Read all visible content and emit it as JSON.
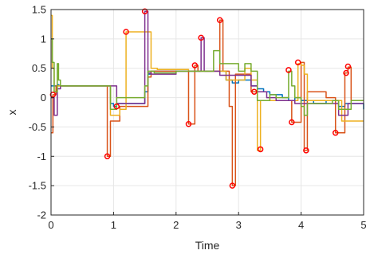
{
  "chart_data": {
    "type": "line",
    "title": "",
    "xlabel": "Time",
    "ylabel": "x",
    "xlim": [
      0,
      5
    ],
    "ylim": [
      -2,
      1.5
    ],
    "xticks": [
      "0",
      "1",
      "2",
      "3",
      "4",
      "5"
    ],
    "yticks": [
      "-2",
      "-1.5",
      "-1",
      "-0.5",
      "0",
      "0.5",
      "1",
      "1.5"
    ],
    "grid": true,
    "step_lines": true,
    "series": [
      {
        "color": "#0072bd",
        "x": [
          0,
          0.05,
          0.1,
          0.12,
          0.15,
          0.2,
          0.25,
          0.3,
          0.5,
          0.7,
          0.9,
          0.95,
          1.0,
          1.05,
          1.2,
          1.25,
          1.4,
          1.5,
          1.55,
          1.6,
          1.7,
          1.8,
          2.0,
          2.2,
          2.3,
          2.35,
          2.4,
          2.5,
          2.6,
          2.7,
          2.8,
          2.9,
          3.0,
          3.1,
          3.2,
          3.25,
          3.3,
          3.4,
          3.5,
          3.6,
          3.7,
          3.8,
          3.9,
          4.0,
          4.1,
          4.2,
          4.3,
          4.4,
          4.5,
          4.6,
          4.7,
          4.8,
          4.9,
          5.0
        ],
        "y": [
          0.2,
          0.2,
          0.22,
          0.21,
          0.2,
          0.2,
          0.2,
          0.2,
          0.2,
          0.2,
          0.2,
          -0.1,
          -0.15,
          -0.1,
          -0.1,
          -0.1,
          -0.1,
          0.1,
          0.4,
          0.45,
          0.45,
          0.45,
          0.45,
          0.45,
          0.45,
          0.45,
          0.45,
          0.45,
          0.45,
          0.45,
          0.3,
          0.25,
          0.3,
          0.3,
          0.2,
          0.2,
          0.15,
          0.1,
          0.05,
          0.05,
          0.0,
          -0.05,
          0.0,
          -0.05,
          -0.05,
          -0.1,
          -0.1,
          -0.05,
          -0.05,
          -0.15,
          -0.1,
          -0.1,
          -0.1,
          -0.2
        ]
      },
      {
        "color": "#d95319",
        "x": [
          0,
          0.03,
          0.05,
          0.08,
          0.1,
          0.3,
          0.85,
          0.9,
          0.95,
          1.1,
          1.2,
          1.3,
          1.4,
          1.5,
          1.55,
          1.6,
          2.1,
          2.2,
          2.25,
          2.3,
          2.35,
          2.5,
          2.6,
          2.7,
          2.75,
          2.85,
          2.9,
          2.95,
          3.1,
          3.2,
          3.3,
          3.5,
          3.75,
          3.8,
          3.85,
          3.9,
          4.0,
          4.05,
          4.1,
          4.4,
          4.55,
          4.65,
          4.7,
          4.75,
          4.8,
          5.0
        ],
        "y": [
          -0.6,
          0.05,
          0.05,
          0.2,
          0.2,
          0.2,
          0.2,
          -1.0,
          -0.4,
          -0.15,
          -0.15,
          -0.15,
          -0.15,
          -0.15,
          0.35,
          0.45,
          0.45,
          -0.45,
          -0.45,
          0.55,
          0.45,
          0.45,
          0.45,
          1.32,
          0.45,
          -0.15,
          -1.5,
          0.4,
          0.4,
          0.1,
          -0.05,
          -0.05,
          -0.05,
          -0.05,
          -0.42,
          -0.42,
          0.6,
          -0.9,
          0.1,
          0.0,
          -0.6,
          -0.6,
          0.42,
          0.52,
          -0.05,
          -0.05
        ]
      },
      {
        "color": "#edb120",
        "x": [
          0,
          0.02,
          0.05,
          0.1,
          0.3,
          0.5,
          0.9,
          0.95,
          1.05,
          1.1,
          1.2,
          1.35,
          1.5,
          1.6,
          1.7,
          2.2,
          2.3,
          2.5,
          2.7,
          2.75,
          2.8,
          2.9,
          3.0,
          3.1,
          3.2,
          3.3,
          3.35,
          3.5,
          3.7,
          3.8,
          3.95,
          4.0,
          4.05,
          4.1,
          4.2,
          4.4,
          4.6,
          4.65,
          4.8,
          5.0
        ],
        "y": [
          1.4,
          0.5,
          0.1,
          0.2,
          0.2,
          0.2,
          0.2,
          -0.3,
          -0.3,
          -0.2,
          1.12,
          1.12,
          1.12,
          0.5,
          0.48,
          0.45,
          0.45,
          0.45,
          0.45,
          0.45,
          0.3,
          0.3,
          0.3,
          0.5,
          0.3,
          -0.9,
          -0.05,
          -0.05,
          -0.05,
          -0.05,
          0.58,
          0.55,
          0.4,
          -0.05,
          -0.05,
          -0.05,
          -0.05,
          -0.4,
          -0.4,
          -0.4
        ]
      },
      {
        "color": "#7e2f8e",
        "x": [
          0,
          0.05,
          0.1,
          0.15,
          0.2,
          0.5,
          0.9,
          1.0,
          1.05,
          1.2,
          1.4,
          1.5,
          1.55,
          1.6,
          1.7,
          2.0,
          2.3,
          2.4,
          2.45,
          2.6,
          2.7,
          2.9,
          3.0,
          3.2,
          3.3,
          3.45,
          3.6,
          3.9,
          4.0,
          4.1,
          4.3,
          4.5,
          4.6,
          4.7,
          4.75,
          5.0
        ],
        "y": [
          0.0,
          -0.3,
          0.15,
          0.2,
          0.2,
          0.2,
          0.2,
          0.2,
          -0.1,
          -0.1,
          -0.1,
          1.47,
          0.42,
          0.4,
          0.4,
          0.45,
          0.45,
          1.02,
          0.45,
          0.45,
          0.38,
          0.38,
          0.38,
          0.2,
          0.1,
          0.0,
          -0.05,
          -0.1,
          -0.1,
          -0.1,
          -0.1,
          -0.1,
          -0.3,
          -0.3,
          -0.1,
          -0.1
        ]
      },
      {
        "color": "#77ac30",
        "x": [
          0,
          0.02,
          0.05,
          0.1,
          0.12,
          0.15,
          0.2,
          0.5,
          0.9,
          0.95,
          1.0,
          1.05,
          1.2,
          1.5,
          1.55,
          1.6,
          1.65,
          2.0,
          2.3,
          2.35,
          2.5,
          2.6,
          2.7,
          2.8,
          2.9,
          3.0,
          3.1,
          3.2,
          3.3,
          3.4,
          3.5,
          3.6,
          3.8,
          3.85,
          3.9,
          4.0,
          4.05,
          4.1,
          4.2,
          4.4,
          4.5,
          4.6,
          4.7,
          4.8,
          5.0
        ],
        "y": [
          1.0,
          0.6,
          0.1,
          0.58,
          0.3,
          0.2,
          0.2,
          0.2,
          0.2,
          -0.2,
          -0.2,
          0.0,
          0.0,
          0.2,
          0.45,
          0.45,
          0.42,
          0.45,
          0.45,
          0.45,
          0.45,
          0.8,
          0.58,
          0.58,
          0.58,
          0.45,
          0.58,
          0.45,
          -0.05,
          -0.05,
          0.05,
          0.0,
          0.45,
          0.2,
          0.0,
          -0.15,
          -0.3,
          -0.1,
          -0.1,
          -0.1,
          -0.05,
          -0.2,
          -0.2,
          -0.05,
          -0.05
        ]
      }
    ],
    "markers": {
      "color": "#ff0000",
      "points": [
        [
          0.03,
          0.05
        ],
        [
          0.9,
          -1.0
        ],
        [
          1.05,
          -0.15
        ],
        [
          1.2,
          1.12
        ],
        [
          1.5,
          1.47
        ],
        [
          2.2,
          -0.45
        ],
        [
          2.3,
          0.55
        ],
        [
          2.4,
          1.02
        ],
        [
          2.7,
          1.32
        ],
        [
          2.9,
          -1.5
        ],
        [
          3.25,
          0.1
        ],
        [
          3.35,
          -0.88
        ],
        [
          3.8,
          0.47
        ],
        [
          3.85,
          -0.42
        ],
        [
          3.95,
          0.6
        ],
        [
          4.08,
          -0.9
        ],
        [
          4.55,
          -0.6
        ],
        [
          4.72,
          0.42
        ],
        [
          4.75,
          0.53
        ]
      ]
    }
  }
}
